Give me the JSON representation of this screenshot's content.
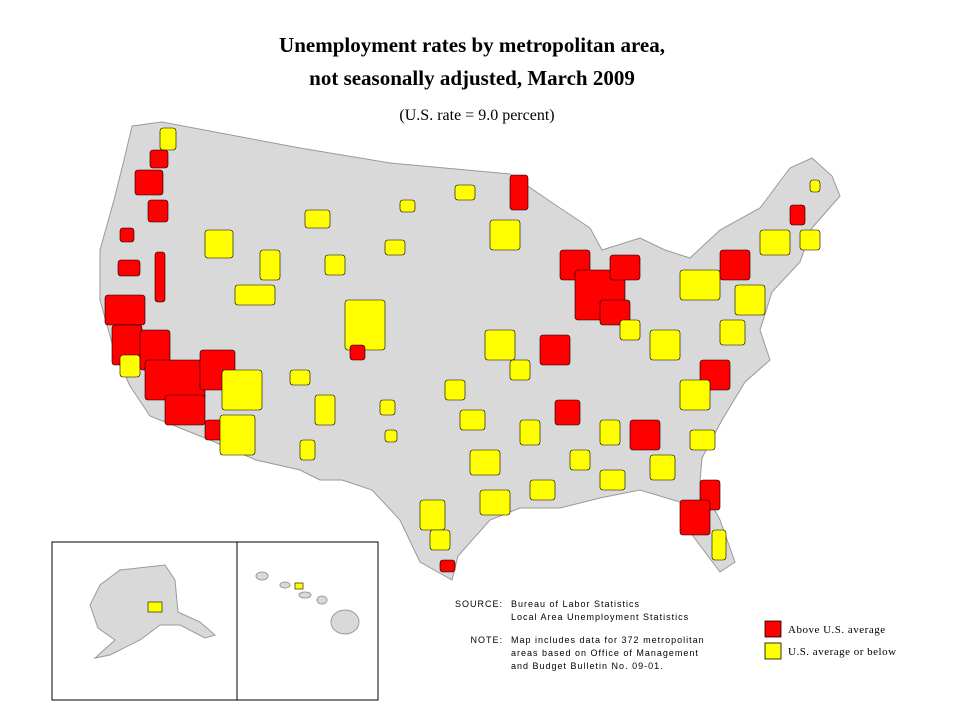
{
  "header": {
    "title_lines": [
      "Unemployment rates by metropolitan area,",
      "not seasonally adjusted, March 2009"
    ],
    "subtitle": "(U.S. rate = 9.0 percent)"
  },
  "notes": {
    "source_label": "SOURCE:",
    "source_lines": [
      "Bureau of Labor Statistics",
      "Local Area Unemployment Statistics"
    ],
    "note_label": "NOTE:",
    "note_lines": [
      "Map includes data for 372 metropolitan",
      "areas based on Office of Management",
      "and Budget Bulletin No. 09-01."
    ]
  },
  "legend": [
    {
      "label": "Above U.S. average",
      "color": "#ff0000"
    },
    {
      "label": "U.S. average or below",
      "color": "#ffff00"
    }
  ]
}
